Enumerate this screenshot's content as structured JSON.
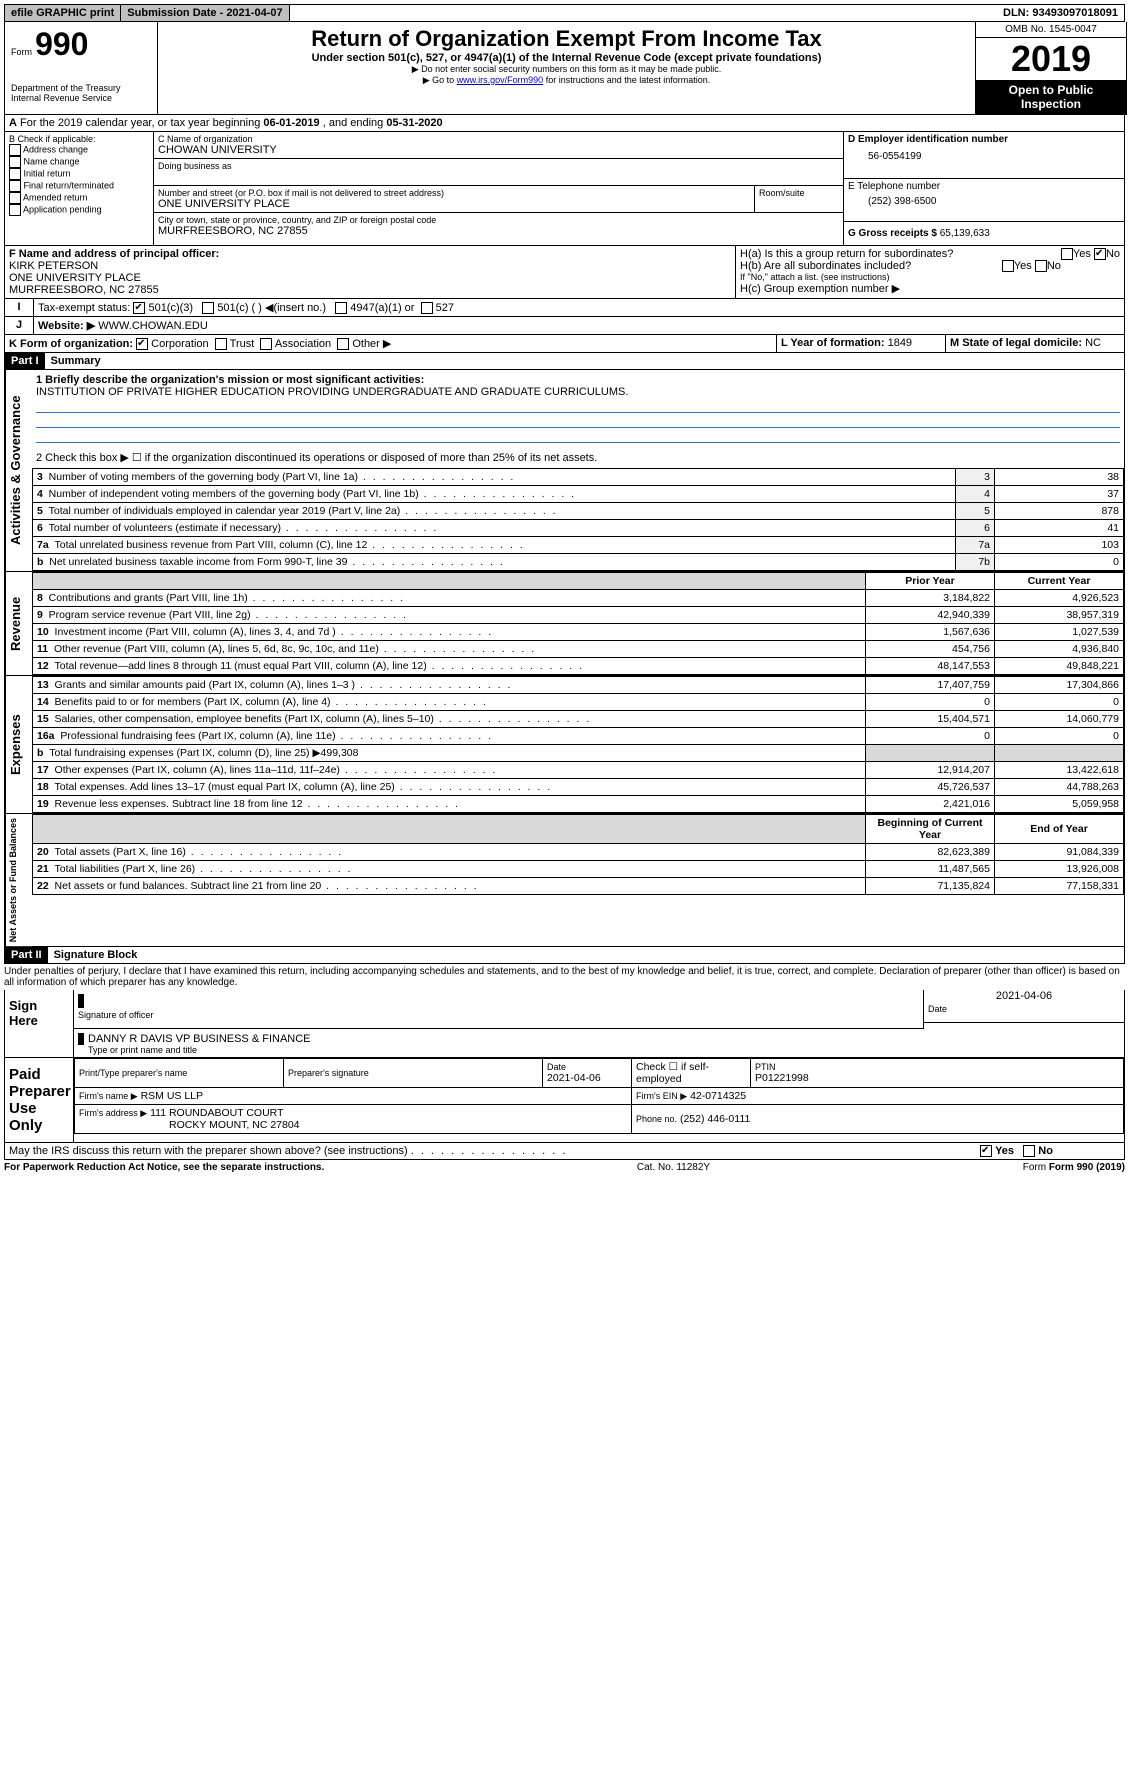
{
  "topbar": {
    "efile": "efile GRAPHIC print",
    "submission_label": "Submission Date - 2021-04-07",
    "dln": "DLN: 93493097018091"
  },
  "header": {
    "form_label": "Form",
    "form_number": "990",
    "dept": "Department of the Treasury",
    "irs": "Internal Revenue Service",
    "title": "Return of Organization Exempt From Income Tax",
    "subtitle": "Under section 501(c), 527, or 4947(a)(1) of the Internal Revenue Code (except private foundations)",
    "note1": "▶ Do not enter social security numbers on this form as it may be made public.",
    "note2_pre": "▶ Go to ",
    "note2_link": "www.irs.gov/Form990",
    "note2_post": " for instructions and the latest information.",
    "omb": "OMB No. 1545-0047",
    "year": "2019",
    "open": "Open to Public Inspection"
  },
  "period": {
    "text_pre": "For the 2019 calendar year, or tax year beginning ",
    "begin": "06-01-2019",
    "mid": " , and ending ",
    "end": "05-31-2020"
  },
  "boxB": {
    "label": "B Check if applicable:",
    "items": [
      "Address change",
      "Name change",
      "Initial return",
      "Final return/terminated",
      "Amended return",
      "Application pending"
    ]
  },
  "boxC": {
    "name_label": "C Name of organization",
    "name": "CHOWAN UNIVERSITY",
    "dba_label": "Doing business as",
    "addr_label": "Number and street (or P.O. box if mail is not delivered to street address)",
    "room_label": "Room/suite",
    "addr": "ONE UNIVERSITY PLACE",
    "city_label": "City or town, state or province, country, and ZIP or foreign postal code",
    "city": "MURFREESBORO, NC  27855"
  },
  "boxD": {
    "label": "D Employer identification number",
    "value": "56-0554199"
  },
  "boxE": {
    "label": "E Telephone number",
    "value": "(252) 398-6500"
  },
  "boxG": {
    "label": "G Gross receipts $",
    "value": "65,139,633"
  },
  "boxF": {
    "label": "F Name and address of principal officer:",
    "name": "KIRK PETERSON",
    "addr1": "ONE UNIVERSITY PLACE",
    "addr2": "MURFREESBORO, NC  27855"
  },
  "boxH": {
    "a": "H(a) Is this a group return for subordinates?",
    "b": "H(b) Are all subordinates included?",
    "note": "If \"No,\" attach a list. (see instructions)",
    "c": "H(c) Group exemption number ▶",
    "yes": "Yes",
    "no": "No"
  },
  "boxI": {
    "label": "Tax-exempt status:",
    "c3": "501(c)(3)",
    "c": "501(c) (  ) ◀(insert no.)",
    "a1": "4947(a)(1) or",
    "s527": "527"
  },
  "boxJ": {
    "label": "Website: ▶",
    "value": "WWW.CHOWAN.EDU"
  },
  "boxK": {
    "label": "K Form of organization:",
    "corp": "Corporation",
    "trust": "Trust",
    "assoc": "Association",
    "other": "Other ▶"
  },
  "boxL": {
    "label": "L Year of formation:",
    "value": "1849"
  },
  "boxM": {
    "label": "M State of legal domicile:",
    "value": "NC"
  },
  "part1": {
    "header": "Part I",
    "title": "Summary",
    "q1_label": "1  Briefly describe the organization's mission or most significant activities:",
    "q1_value": "INSTITUTION OF PRIVATE HIGHER EDUCATION PROVIDING UNDERGRADUATE AND GRADUATE CURRICULUMS.",
    "q2": "2  Check this box ▶ ☐ if the organization discontinued its operations or disposed of more than 25% of its net assets.",
    "side_gov": "Activities & Governance",
    "side_rev": "Revenue",
    "side_exp": "Expenses",
    "side_net": "Net Assets or Fund Balances",
    "lines_gov": [
      {
        "n": "3",
        "d": "Number of voting members of the governing body (Part VI, line 1a)",
        "r": "3",
        "v": "38"
      },
      {
        "n": "4",
        "d": "Number of independent voting members of the governing body (Part VI, line 1b)",
        "r": "4",
        "v": "37"
      },
      {
        "n": "5",
        "d": "Total number of individuals employed in calendar year 2019 (Part V, line 2a)",
        "r": "5",
        "v": "878"
      },
      {
        "n": "6",
        "d": "Total number of volunteers (estimate if necessary)",
        "r": "6",
        "v": "41"
      },
      {
        "n": "7a",
        "d": "Total unrelated business revenue from Part VIII, column (C), line 12",
        "r": "7a",
        "v": "103"
      },
      {
        "n": "b",
        "d": "Net unrelated business taxable income from Form 990-T, line 39",
        "r": "7b",
        "v": "0"
      }
    ],
    "col_prior": "Prior Year",
    "col_current": "Current Year",
    "col_boy": "Beginning of Current Year",
    "col_eoy": "End of Year",
    "lines_rev": [
      {
        "n": "8",
        "d": "Contributions and grants (Part VIII, line 1h)",
        "p": "3,184,822",
        "c": "4,926,523"
      },
      {
        "n": "9",
        "d": "Program service revenue (Part VIII, line 2g)",
        "p": "42,940,339",
        "c": "38,957,319"
      },
      {
        "n": "10",
        "d": "Investment income (Part VIII, column (A), lines 3, 4, and 7d )",
        "p": "1,567,636",
        "c": "1,027,539"
      },
      {
        "n": "11",
        "d": "Other revenue (Part VIII, column (A), lines 5, 6d, 8c, 9c, 10c, and 11e)",
        "p": "454,756",
        "c": "4,936,840"
      },
      {
        "n": "12",
        "d": "Total revenue—add lines 8 through 11 (must equal Part VIII, column (A), line 12)",
        "p": "48,147,553",
        "c": "49,848,221"
      }
    ],
    "lines_exp": [
      {
        "n": "13",
        "d": "Grants and similar amounts paid (Part IX, column (A), lines 1–3 )",
        "p": "17,407,759",
        "c": "17,304,866"
      },
      {
        "n": "14",
        "d": "Benefits paid to or for members (Part IX, column (A), line 4)",
        "p": "0",
        "c": "0"
      },
      {
        "n": "15",
        "d": "Salaries, other compensation, employee benefits (Part IX, column (A), lines 5–10)",
        "p": "15,404,571",
        "c": "14,060,779"
      },
      {
        "n": "16a",
        "d": "Professional fundraising fees (Part IX, column (A), line 11e)",
        "p": "0",
        "c": "0"
      },
      {
        "n": "b",
        "d": "Total fundraising expenses (Part IX, column (D), line 25) ▶499,308",
        "p": "",
        "c": ""
      },
      {
        "n": "17",
        "d": "Other expenses (Part IX, column (A), lines 11a–11d, 11f–24e)",
        "p": "12,914,207",
        "c": "13,422,618"
      },
      {
        "n": "18",
        "d": "Total expenses. Add lines 13–17 (must equal Part IX, column (A), line 25)",
        "p": "45,726,537",
        "c": "44,788,263"
      },
      {
        "n": "19",
        "d": "Revenue less expenses. Subtract line 18 from line 12",
        "p": "2,421,016",
        "c": "5,059,958"
      }
    ],
    "lines_net": [
      {
        "n": "20",
        "d": "Total assets (Part X, line 16)",
        "p": "82,623,389",
        "c": "91,084,339"
      },
      {
        "n": "21",
        "d": "Total liabilities (Part X, line 26)",
        "p": "11,487,565",
        "c": "13,926,008"
      },
      {
        "n": "22",
        "d": "Net assets or fund balances. Subtract line 21 from line 20",
        "p": "71,135,824",
        "c": "77,158,331"
      }
    ]
  },
  "part2": {
    "header": "Part II",
    "title": "Signature Block",
    "declaration": "Under penalties of perjury, I declare that I have examined this return, including accompanying schedules and statements, and to the best of my knowledge and belief, it is true, correct, and complete. Declaration of preparer (other than officer) is based on all information of which preparer has any knowledge.",
    "sign_here": "Sign Here",
    "sig_officer": "Signature of officer",
    "sig_date": "2021-04-06",
    "date_label": "Date",
    "officer_name": "DANNY R DAVIS VP BUSINESS & FINANCE",
    "type_label": "Type or print name and title",
    "paid": "Paid Preparer Use Only",
    "prep_name_label": "Print/Type preparer's name",
    "prep_sig_label": "Preparer's signature",
    "prep_date_label": "Date",
    "prep_date": "2021-04-06",
    "check_if": "Check ☐ if self-employed",
    "ptin_label": "PTIN",
    "ptin": "P01221998",
    "firm_name_label": "Firm's name    ▶",
    "firm_name": "RSM US LLP",
    "firm_ein_label": "Firm's EIN ▶",
    "firm_ein": "42-0714325",
    "firm_addr_label": "Firm's address ▶",
    "firm_addr1": "111 ROUNDABOUT COURT",
    "firm_addr2": "ROCKY MOUNT, NC  27804",
    "phone_label": "Phone no.",
    "phone": "(252) 446-0111",
    "discuss": "May the IRS discuss this return with the preparer shown above? (see instructions)",
    "yes": "Yes",
    "no": "No"
  },
  "footer": {
    "pra": "For Paperwork Reduction Act Notice, see the separate instructions.",
    "cat": "Cat. No. 11282Y",
    "form": "Form 990 (2019)"
  }
}
